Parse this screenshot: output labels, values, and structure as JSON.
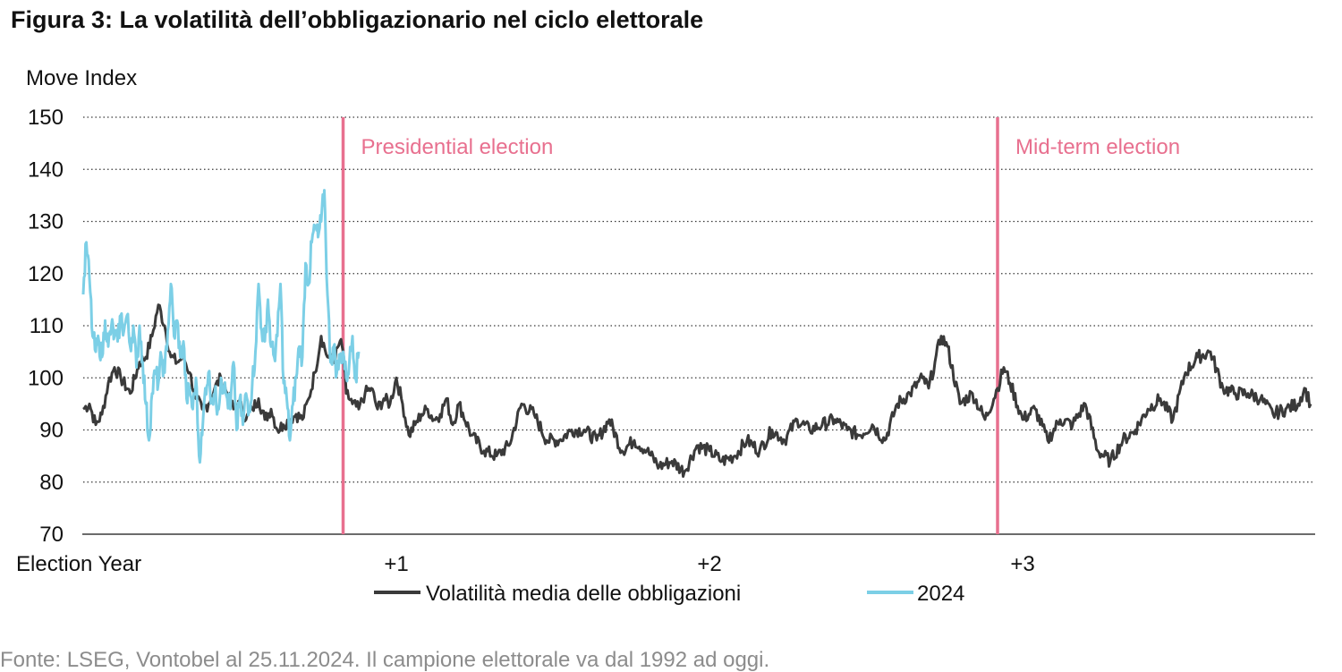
{
  "title": "Figura 3: La volatilità dell’obbligazionario nel ciclo elettorale",
  "source": "Fonte: LSEG, Vontobel al 25.11.2024. Il campione elettorale va dal 1992 ad oggi.",
  "colors": {
    "average": "#3a3a3a",
    "current": "#7ccfe6",
    "election_marker": "#e8708f",
    "grid": "#3a3a3a",
    "source_text": "#8c8c8c"
  },
  "chart_data": {
    "type": "line",
    "ylabel": "Move Index",
    "ylim": [
      70,
      150
    ],
    "yticks": [
      70,
      80,
      90,
      100,
      110,
      120,
      130,
      140,
      150
    ],
    "xlim": [
      0,
      3.92
    ],
    "xticks": [
      {
        "x": 0,
        "label": "Election Year"
      },
      {
        "x": 1,
        "label": "+1"
      },
      {
        "x": 2,
        "label": "+2"
      },
      {
        "x": 3,
        "label": "+3"
      }
    ],
    "grid": "horizontal dotted",
    "legend_position": "bottom",
    "markers": [
      {
        "x": 0.83,
        "label": "Presidential election"
      },
      {
        "x": 2.92,
        "label": "Mid-term election"
      }
    ],
    "series": [
      {
        "name": "Volatilità media delle obbligazioni",
        "color": "#3a3a3a",
        "x": [
          0.0,
          0.02,
          0.04,
          0.06,
          0.08,
          0.1,
          0.12,
          0.15,
          0.18,
          0.2,
          0.22,
          0.24,
          0.26,
          0.28,
          0.3,
          0.32,
          0.34,
          0.36,
          0.38,
          0.4,
          0.42,
          0.44,
          0.46,
          0.48,
          0.5,
          0.52,
          0.54,
          0.56,
          0.58,
          0.6,
          0.62,
          0.64,
          0.66,
          0.68,
          0.7,
          0.72,
          0.74,
          0.76,
          0.78,
          0.8,
          0.82,
          0.83,
          0.84,
          0.86,
          0.88,
          0.9,
          0.92,
          0.94,
          0.96,
          0.98,
          1.0,
          1.02,
          1.04,
          1.06,
          1.08,
          1.1,
          1.12,
          1.14,
          1.16,
          1.18,
          1.2,
          1.24,
          1.28,
          1.32,
          1.36,
          1.4,
          1.44,
          1.48,
          1.52,
          1.56,
          1.6,
          1.64,
          1.68,
          1.72,
          1.76,
          1.8,
          1.84,
          1.88,
          1.92,
          1.96,
          2.0,
          2.04,
          2.08,
          2.12,
          2.16,
          2.2,
          2.24,
          2.28,
          2.32,
          2.36,
          2.4,
          2.44,
          2.48,
          2.52,
          2.56,
          2.6,
          2.64,
          2.68,
          2.7,
          2.72,
          2.74,
          2.76,
          2.8,
          2.84,
          2.88,
          2.92,
          2.94,
          2.96,
          3.0,
          3.04,
          3.08,
          3.12,
          3.16,
          3.2,
          3.24,
          3.28,
          3.32,
          3.36,
          3.4,
          3.44,
          3.48,
          3.52,
          3.56,
          3.6,
          3.64,
          3.68,
          3.72,
          3.76,
          3.8,
          3.84,
          3.88,
          3.9,
          3.92
        ],
        "y": [
          94,
          95,
          91,
          93,
          99,
          102,
          100,
          97,
          103,
          104,
          108,
          114,
          110,
          104,
          103,
          104,
          101,
          96,
          94,
          95,
          98,
          100,
          97,
          94,
          95,
          92,
          94,
          96,
          92,
          94,
          90,
          91,
          92,
          93,
          92,
          96,
          101,
          108,
          104,
          103,
          107,
          105,
          97,
          95,
          94,
          97,
          98,
          94,
          96,
          95,
          100,
          95,
          89,
          91,
          93,
          94,
          92,
          93,
          96,
          91,
          95,
          89,
          86,
          85,
          87,
          95,
          93,
          88,
          88,
          90,
          90,
          88,
          92,
          86,
          88,
          86,
          83,
          84,
          82,
          87,
          86,
          84,
          85,
          88,
          86,
          90,
          88,
          92,
          90,
          91,
          92,
          90,
          89,
          91,
          88,
          95,
          97,
          100,
          98,
          103,
          108,
          106,
          95,
          97,
          92,
          98,
          102,
          99,
          92,
          94,
          88,
          92,
          91,
          95,
          86,
          84,
          88,
          90,
          94,
          96,
          92,
          101,
          104,
          105,
          98,
          97,
          97,
          96,
          93,
          94,
          95,
          98,
          95
        ],
        "smooth": "noisy"
      },
      {
        "name": "2024",
        "color": "#7ccfe6",
        "x": [
          0.0,
          0.01,
          0.02,
          0.03,
          0.04,
          0.05,
          0.06,
          0.07,
          0.08,
          0.09,
          0.1,
          0.11,
          0.12,
          0.13,
          0.14,
          0.15,
          0.16,
          0.17,
          0.18,
          0.19,
          0.2,
          0.21,
          0.22,
          0.23,
          0.24,
          0.25,
          0.26,
          0.27,
          0.28,
          0.29,
          0.3,
          0.31,
          0.32,
          0.33,
          0.34,
          0.35,
          0.36,
          0.37,
          0.38,
          0.39,
          0.4,
          0.41,
          0.42,
          0.43,
          0.44,
          0.45,
          0.46,
          0.47,
          0.48,
          0.49,
          0.5,
          0.51,
          0.52,
          0.53,
          0.54,
          0.55,
          0.56,
          0.57,
          0.58,
          0.59,
          0.6,
          0.61,
          0.62,
          0.63,
          0.64,
          0.65,
          0.66,
          0.67,
          0.68,
          0.69,
          0.7,
          0.71,
          0.72,
          0.73,
          0.74,
          0.75,
          0.76,
          0.77,
          0.78,
          0.79,
          0.8,
          0.81,
          0.82,
          0.83,
          0.84,
          0.85,
          0.86,
          0.87,
          0.88
        ],
        "y": [
          116,
          126,
          119,
          108,
          105,
          107,
          104,
          111,
          106,
          110,
          108,
          107,
          112,
          109,
          112,
          106,
          110,
          102,
          110,
          103,
          95,
          88,
          97,
          101,
          99,
          104,
          101,
          109,
          118,
          108,
          111,
          104,
          107,
          96,
          98,
          94,
          100,
          85,
          89,
          98,
          101,
          96,
          97,
          94,
          100,
          98,
          96,
          94,
          103,
          90,
          96,
          91,
          97,
          94,
          99,
          105,
          118,
          109,
          107,
          115,
          106,
          104,
          108,
          118,
          99,
          96,
          88,
          95,
          100,
          106,
          104,
          122,
          118,
          126,
          129,
          127,
          130,
          136,
          116,
          103,
          106,
          101,
          104,
          105,
          100,
          103,
          108,
          100,
          105
        ],
        "smooth": "noisy"
      }
    ]
  }
}
